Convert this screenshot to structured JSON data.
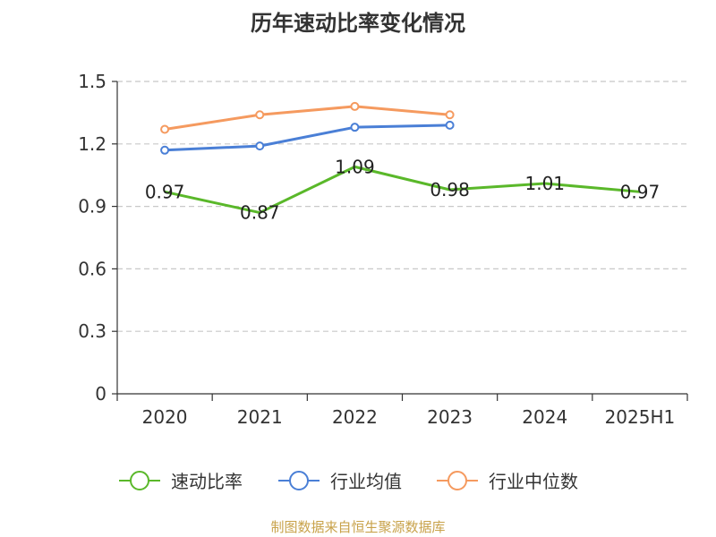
{
  "chart_data": {
    "type": "line",
    "title": "历年速动比率变化情况",
    "categories": [
      "2020",
      "2021",
      "2022",
      "2023",
      "2024",
      "2025H1"
    ],
    "ylim": [
      0,
      1.5
    ],
    "yticks": [
      "0",
      "0.3",
      "0.6",
      "0.9",
      "1.2",
      "1.5"
    ],
    "grid": true,
    "legend_position": "bottom",
    "series": [
      {
        "name": "速动比率",
        "color": "#5ab82a",
        "values": [
          0.97,
          0.87,
          1.09,
          0.98,
          1.01,
          0.97
        ],
        "labels": [
          "0.97",
          "0.87",
          "1.09",
          "0.98",
          "1.01",
          "0.97"
        ],
        "show_markers": false
      },
      {
        "name": "行业均值",
        "color": "#4a7fd6",
        "values": [
          1.17,
          1.19,
          1.28,
          1.29,
          null,
          null
        ],
        "show_markers": true
      },
      {
        "name": "行业中位数",
        "color": "#f59a5f",
        "values": [
          1.27,
          1.34,
          1.38,
          1.34,
          null,
          null
        ],
        "show_markers": true
      }
    ]
  },
  "footer": {
    "source": "制图数据来自恒生聚源数据库"
  }
}
